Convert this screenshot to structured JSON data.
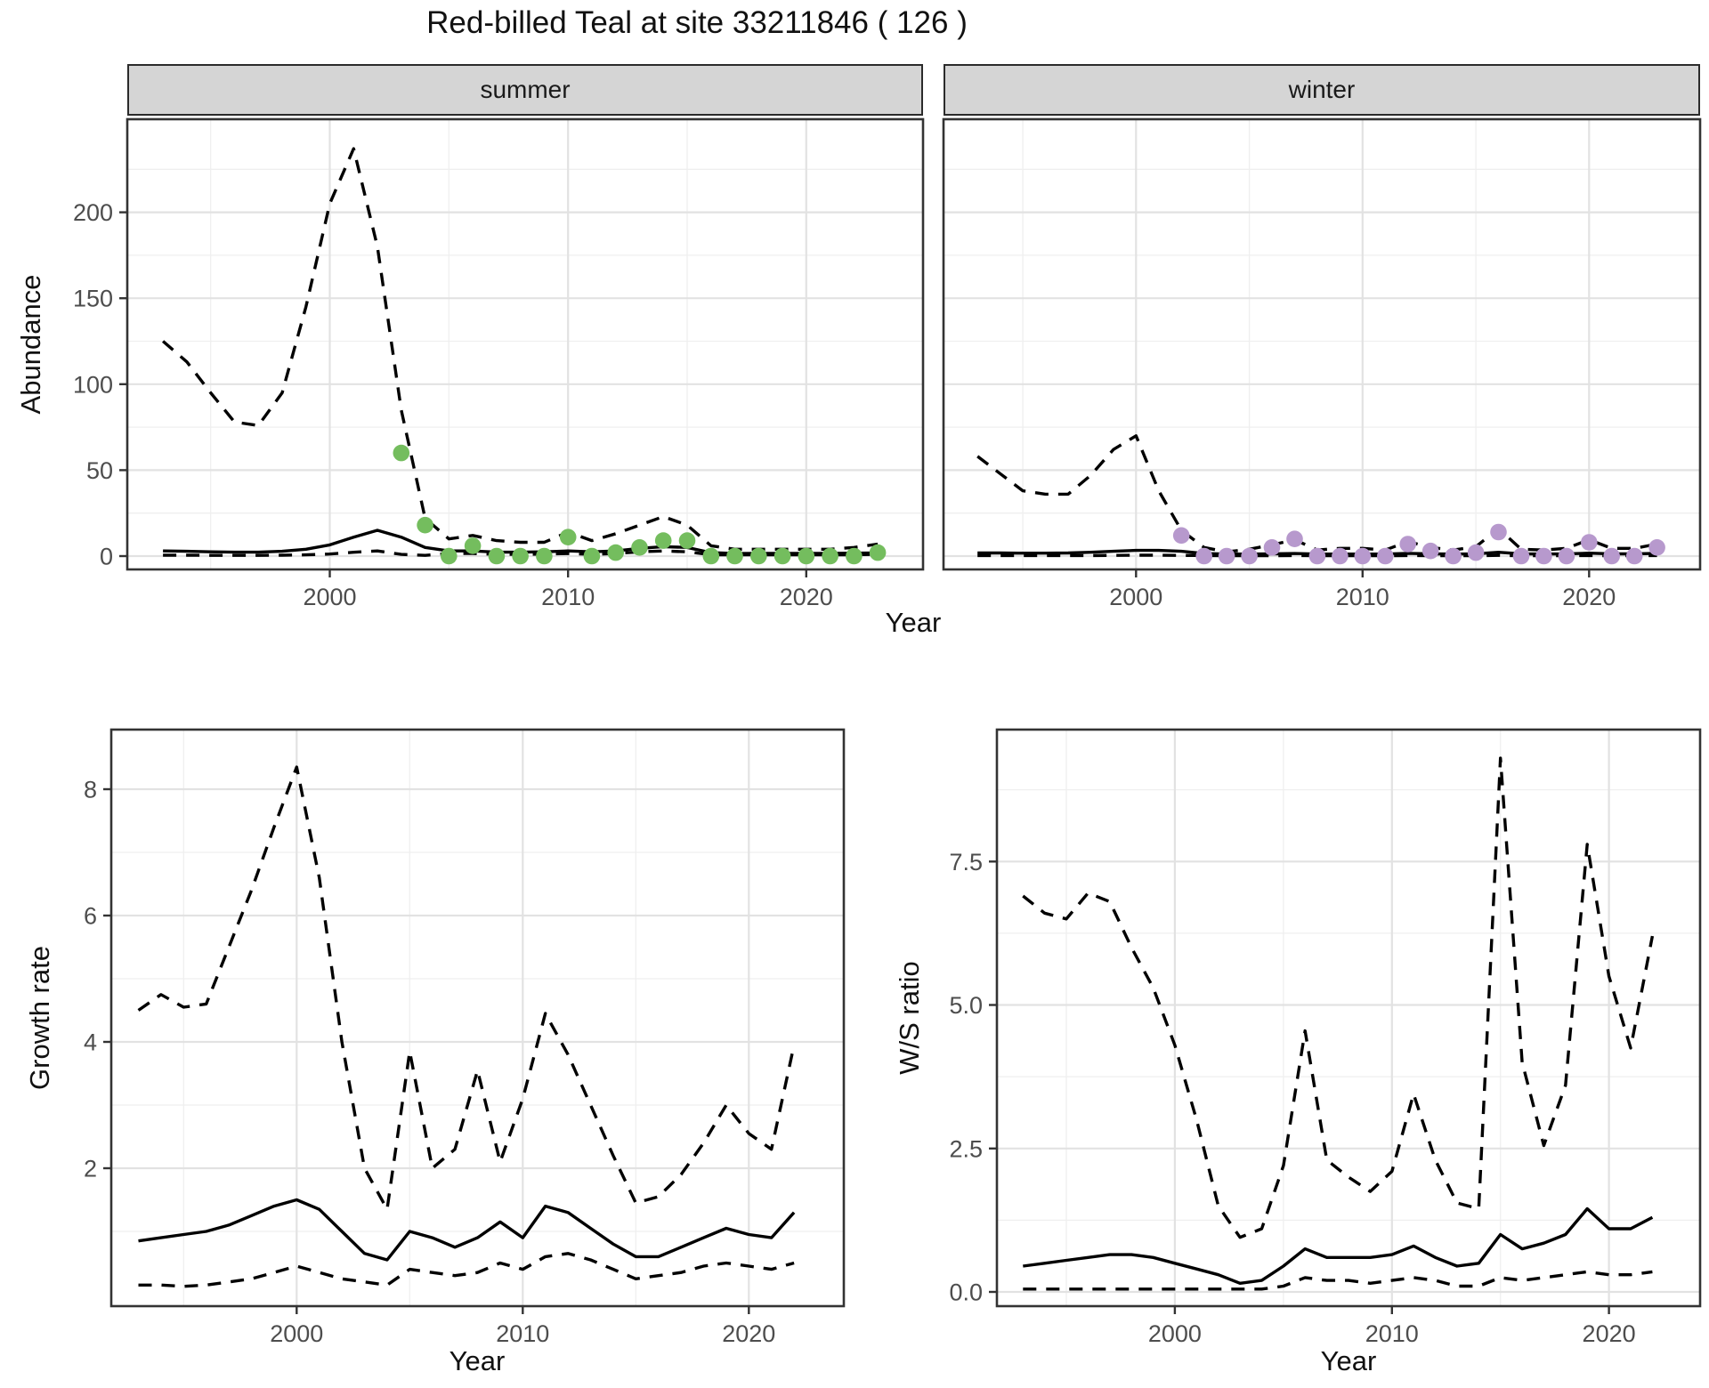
{
  "title": "Red-billed Teal at site 33211846 ( 126 )",
  "facets": [
    {
      "label": "summer"
    },
    {
      "label": "winter"
    }
  ],
  "axes": {
    "x_label": "Year",
    "abundance_label": "Abundance",
    "growth_label": "Growth rate",
    "ws_label": "W/S ratio"
  },
  "colors": {
    "summer_point": "#74bd5e",
    "winter_point": "#b799cd",
    "line": "#000000",
    "strip_bg": "#d5d5d5",
    "grid_major": "#e2e2e2",
    "grid_minor": "#efefef",
    "panel_border": "#333333",
    "tick_label": "#4d4d4d"
  },
  "chart_data": [
    {
      "id": "abundance_summer",
      "type": "line",
      "facet": "summer",
      "xlabel": "Year",
      "ylabel": "Abundance",
      "xlim": [
        1991.5,
        2024.9
      ],
      "ylim": [
        -8,
        254
      ],
      "xticks": {
        "values": [
          2000,
          2010,
          2020
        ],
        "labels": [
          "2000",
          "2010",
          "2020"
        ],
        "minor": [
          1995,
          2005,
          2015
        ]
      },
      "yticks": {
        "values": [
          0,
          50,
          100,
          150,
          200
        ],
        "labels": [
          "0",
          "50",
          "100",
          "150",
          "200"
        ],
        "minor": [
          25,
          75,
          125,
          175,
          225
        ]
      },
      "x": [
        1993,
        1994,
        1995,
        1996,
        1997,
        1998,
        1999,
        2000,
        2001,
        2002,
        2003,
        2004,
        2005,
        2006,
        2007,
        2008,
        2009,
        2010,
        2011,
        2012,
        2013,
        2014,
        2015,
        2016,
        2017,
        2018,
        2019,
        2020,
        2021,
        2022,
        2023
      ],
      "series": [
        {
          "name": "upper-95ci",
          "style": "dashed",
          "values": [
            125,
            113,
            95,
            78,
            76,
            95,
            145,
            205,
            237,
            180,
            85,
            22,
            10,
            12,
            9,
            8,
            8,
            14,
            9,
            13,
            18,
            23,
            18,
            6,
            4,
            4,
            4,
            4,
            4,
            5,
            7
          ]
        },
        {
          "name": "fitted-mean",
          "style": "solid",
          "values": [
            3,
            2.8,
            2.5,
            2.3,
            2.3,
            2.8,
            4,
            6.5,
            11,
            15,
            11,
            5,
            3,
            3,
            2.3,
            2.3,
            2.5,
            3,
            2.5,
            3,
            4.5,
            5.5,
            5,
            2,
            1.5,
            1.6,
            1.6,
            1.6,
            1.6,
            1.7,
            1.8
          ]
        },
        {
          "name": "lower-95ci",
          "style": "dashed",
          "values": [
            0.5,
            0.5,
            0.4,
            0.4,
            0.4,
            0.5,
            0.7,
            1.2,
            2.2,
            3,
            1,
            0.4,
            1.5,
            1.5,
            1,
            1,
            1.2,
            1.5,
            1,
            1.5,
            2.5,
            3,
            2.5,
            0.8,
            0.7,
            0.7,
            0.7,
            0.7,
            0.7,
            0.8,
            1
          ]
        }
      ],
      "points": {
        "name": "observed-count",
        "color": "#74bd5e",
        "x": [
          2003,
          2004,
          2005,
          2006,
          2007,
          2008,
          2009,
          2010,
          2011,
          2012,
          2013,
          2014,
          2015,
          2016,
          2017,
          2018,
          2019,
          2020,
          2021,
          2022,
          2023
        ],
        "y": [
          60,
          18,
          0,
          6,
          0,
          0,
          0,
          11,
          0,
          2,
          5,
          9,
          9,
          0,
          0,
          0,
          0,
          0,
          0,
          0,
          2
        ]
      }
    },
    {
      "id": "abundance_winter",
      "type": "line",
      "facet": "winter",
      "xlabel": "Year",
      "ylabel": "Abundance",
      "xlim": [
        1991.5,
        2024.9
      ],
      "ylim": [
        -8,
        254
      ],
      "xticks": {
        "values": [
          2000,
          2010,
          2020
        ],
        "labels": [
          "2000",
          "2010",
          "2020"
        ],
        "minor": [
          1995,
          2005,
          2015
        ]
      },
      "yticks": {
        "values": [
          0,
          50,
          100,
          150,
          200
        ],
        "labels": [
          "0",
          "50",
          "100",
          "150",
          "200"
        ],
        "minor": [
          25,
          75,
          125,
          175,
          225
        ]
      },
      "x": [
        1993,
        1994,
        1995,
        1996,
        1997,
        1998,
        1999,
        2000,
        2001,
        2002,
        2003,
        2004,
        2005,
        2006,
        2007,
        2008,
        2009,
        2010,
        2011,
        2012,
        2013,
        2014,
        2015,
        2016,
        2017,
        2018,
        2019,
        2020,
        2021,
        2022,
        2023
      ],
      "series": [
        {
          "name": "upper-95ci",
          "style": "dashed",
          "values": [
            58,
            48,
            38,
            36,
            36,
            47,
            62,
            70,
            38,
            15,
            5,
            2.5,
            4,
            6.5,
            9.5,
            3.5,
            4.5,
            4.5,
            3.5,
            8.5,
            5,
            3.5,
            5.5,
            16,
            4,
            3.5,
            4.5,
            9.5,
            4.5,
            4.5,
            7
          ]
        },
        {
          "name": "fitted-mean",
          "style": "solid",
          "values": [
            1.8,
            1.8,
            1.7,
            1.7,
            1.8,
            2.2,
            2.8,
            3.3,
            3.3,
            2.8,
            1.5,
            1.2,
            1.2,
            1.3,
            1.5,
            1.2,
            1.2,
            1.2,
            1.2,
            1.6,
            1.3,
            1.2,
            1.3,
            2.2,
            1.3,
            1.2,
            1.3,
            1.7,
            1.3,
            1.3,
            1.6
          ]
        },
        {
          "name": "lower-95ci",
          "style": "dashed",
          "values": [
            0.3,
            0.3,
            0.3,
            0.3,
            0.3,
            0.3,
            0.4,
            0.5,
            0.5,
            0.4,
            0.3,
            0.2,
            0.2,
            0.2,
            0.3,
            0.2,
            0.2,
            0.2,
            0.2,
            0.3,
            0.2,
            0.2,
            0.2,
            0.4,
            0.2,
            0.2,
            0.2,
            0.3,
            0.2,
            0.2,
            0.3
          ]
        }
      ],
      "points": {
        "name": "observed-count",
        "color": "#b799cd",
        "x": [
          2002,
          2003,
          2004,
          2005,
          2006,
          2007,
          2008,
          2009,
          2010,
          2011,
          2012,
          2013,
          2014,
          2015,
          2016,
          2017,
          2018,
          2019,
          2020,
          2021,
          2022,
          2023
        ],
        "y": [
          12,
          0,
          0,
          0,
          5,
          10,
          0,
          0,
          0,
          0,
          7,
          3,
          0,
          2,
          14,
          0,
          0,
          0,
          8,
          0,
          0,
          5
        ]
      }
    },
    {
      "id": "growth_rate",
      "type": "line",
      "facet": "",
      "xlabel": "Year",
      "ylabel": "Growth rate",
      "xlim": [
        1991.8,
        2024.2
      ],
      "ylim": [
        -0.2,
        8.9
      ],
      "xticks": {
        "values": [
          2000,
          2010,
          2020
        ],
        "labels": [
          "2000",
          "2010",
          "2020"
        ],
        "minor": [
          1995,
          2005,
          2015
        ]
      },
      "yticks": {
        "values": [
          2,
          4,
          6,
          8
        ],
        "labels": [
          "2",
          "4",
          "6",
          "8"
        ],
        "minor": [
          1,
          3,
          5,
          7
        ]
      },
      "x": [
        1993,
        1994,
        1995,
        1996,
        1997,
        1998,
        1999,
        2000,
        2001,
        2002,
        2003,
        2004,
        2005,
        2006,
        2007,
        2008,
        2009,
        2010,
        2011,
        2012,
        2013,
        2014,
        2015,
        2016,
        2017,
        2018,
        2019,
        2020,
        2021,
        2022
      ],
      "series": [
        {
          "name": "upper-95ci",
          "style": "dashed",
          "values": [
            4.5,
            4.75,
            4.55,
            4.6,
            5.5,
            6.4,
            7.4,
            8.35,
            6.6,
            4.0,
            2.0,
            1.35,
            3.85,
            2.0,
            2.3,
            3.55,
            2.1,
            3.1,
            4.45,
            3.8,
            3.0,
            2.2,
            1.45,
            1.55,
            1.9,
            2.4,
            3.0,
            2.55,
            2.3,
            3.95
          ]
        },
        {
          "name": "fitted-mean",
          "style": "solid",
          "values": [
            0.85,
            0.9,
            0.95,
            1.0,
            1.1,
            1.25,
            1.4,
            1.5,
            1.35,
            1.0,
            0.65,
            0.55,
            1.0,
            0.9,
            0.75,
            0.9,
            1.15,
            0.9,
            1.4,
            1.3,
            1.05,
            0.8,
            0.6,
            0.6,
            0.75,
            0.9,
            1.05,
            0.95,
            0.9,
            1.3
          ]
        },
        {
          "name": "lower-95ci",
          "style": "dashed",
          "values": [
            0.15,
            0.15,
            0.13,
            0.15,
            0.2,
            0.25,
            0.35,
            0.45,
            0.35,
            0.25,
            0.2,
            0.15,
            0.4,
            0.35,
            0.3,
            0.35,
            0.5,
            0.4,
            0.6,
            0.65,
            0.55,
            0.4,
            0.25,
            0.3,
            0.35,
            0.45,
            0.5,
            0.45,
            0.4,
            0.5
          ]
        }
      ],
      "points": null
    },
    {
      "id": "ws_ratio",
      "type": "line",
      "facet": "",
      "xlabel": "Year",
      "ylabel": "W/S ratio",
      "xlim": [
        1991.8,
        2024.2
      ],
      "ylim": [
        -0.25,
        9.65
      ],
      "xticks": {
        "values": [
          2000,
          2010,
          2020
        ],
        "labels": [
          "2000",
          "2010",
          "2020"
        ],
        "minor": [
          1995,
          2005,
          2015
        ]
      },
      "yticks": {
        "values": [
          0,
          2.5,
          5,
          7.5
        ],
        "labels": [
          "0.0",
          "2.5",
          "5.0",
          "7.5"
        ],
        "minor": [
          1.25,
          3.75,
          6.25,
          8.75
        ]
      },
      "x": [
        1993,
        1994,
        1995,
        1996,
        1997,
        1998,
        1999,
        2000,
        2001,
        2002,
        2003,
        2004,
        2005,
        2006,
        2007,
        2008,
        2009,
        2010,
        2011,
        2012,
        2013,
        2014,
        2015,
        2016,
        2017,
        2018,
        2019,
        2020,
        2021,
        2022
      ],
      "series": [
        {
          "name": "upper-95ci",
          "style": "dashed",
          "values": [
            6.9,
            6.6,
            6.5,
            6.95,
            6.8,
            6.0,
            5.3,
            4.3,
            3.0,
            1.5,
            0.95,
            1.1,
            2.2,
            4.55,
            2.3,
            2.0,
            1.75,
            2.1,
            3.45,
            2.3,
            1.55,
            1.45,
            9.3,
            4.0,
            2.55,
            3.6,
            7.8,
            5.5,
            4.25,
            6.2
          ]
        },
        {
          "name": "fitted-mean",
          "style": "solid",
          "values": [
            0.45,
            0.5,
            0.55,
            0.6,
            0.65,
            0.65,
            0.6,
            0.5,
            0.4,
            0.3,
            0.15,
            0.2,
            0.45,
            0.75,
            0.6,
            0.6,
            0.6,
            0.65,
            0.8,
            0.6,
            0.45,
            0.5,
            1.0,
            0.75,
            0.85,
            1.0,
            1.45,
            1.1,
            1.1,
            1.3
          ]
        },
        {
          "name": "lower-95ci",
          "style": "dashed",
          "values": [
            0.05,
            0.05,
            0.05,
            0.05,
            0.05,
            0.05,
            0.05,
            0.05,
            0.05,
            0.05,
            0.05,
            0.05,
            0.1,
            0.25,
            0.2,
            0.2,
            0.15,
            0.2,
            0.25,
            0.2,
            0.1,
            0.1,
            0.25,
            0.2,
            0.25,
            0.3,
            0.35,
            0.3,
            0.3,
            0.35
          ]
        }
      ],
      "points": null
    }
  ]
}
